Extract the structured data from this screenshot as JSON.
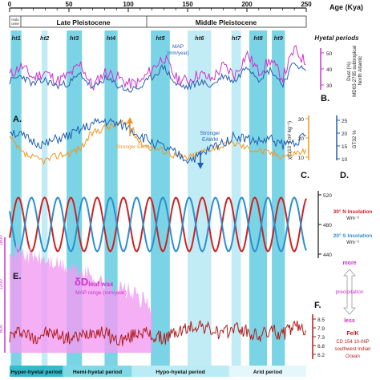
{
  "axis": {
    "label": "Age (Kya)",
    "ticks": [
      "0",
      "50",
      "100",
      "150",
      "200",
      "250"
    ],
    "range": [
      0,
      250
    ]
  },
  "periods": {
    "holocene": "Holo cene",
    "late": "Late Pleistocene",
    "middle": "Middle Pleistocene"
  },
  "hyetal": {
    "title": "Hyetal periods",
    "labels": [
      "ht1",
      "ht2",
      "ht3",
      "ht4",
      "ht5",
      "ht6",
      "ht7",
      "ht8",
      "ht9"
    ],
    "bands": [
      [
        1,
        10
      ],
      [
        27,
        32
      ],
      [
        48,
        61
      ],
      [
        80,
        91
      ],
      [
        119,
        135
      ],
      [
        150,
        170
      ],
      [
        187,
        195
      ],
      [
        202,
        217
      ],
      [
        221,
        232
      ]
    ]
  },
  "panel_labels": {
    "A": "A.",
    "B": "B.",
    "C": "C.",
    "D": "D.",
    "E": "E.",
    "F": "F."
  },
  "panelB": {
    "axis_title": "Dust (%)\nMD03-2705 subtropical\nNorth Atlantic",
    "ticks": [
      "30",
      "40",
      "50"
    ],
    "map_label": "MAP\n(mm/year)",
    "color_dust": "#cc33cc",
    "color_map": "#2a5db0"
  },
  "panelC": {
    "axis_title": "χlf (10⁻⁸ m³ kg⁻¹)",
    "ticks": [
      "10",
      "20",
      "30"
    ],
    "easm": "Stronger EASM",
    "eawm": "Stronger\nEAWM",
    "color": "#f0961e"
  },
  "panelD": {
    "axis_title": "GT32 %",
    "ticks": [
      "10",
      "15",
      "20",
      "25"
    ],
    "color": "#1f5fb0"
  },
  "insolation": {
    "ticks": [
      "520",
      "480",
      "440"
    ],
    "n_label": "30° N Insolation",
    "s_label": "20° S Insolation",
    "unit": "Wm⁻²",
    "color_n": "#cc2222",
    "color_s": "#2a8fcf"
  },
  "panelE": {
    "delta": "δD",
    "subscript": "leaf wax",
    "map_range": "MAP range (mm/year)",
    "left_ticks": [
      "1800",
      "1200",
      "600"
    ],
    "color": "#e060e0"
  },
  "precip": {
    "more": "more",
    "label": "precipitation",
    "less": "less"
  },
  "panelF": {
    "ticks": [
      "8.5",
      "7.9",
      "7.3",
      "6.8",
      "6.2"
    ],
    "axis_title": "Fe/K",
    "core": "CD 154 10-06P",
    "region": "southwest Indian\nOcean",
    "color": "#b01c1c"
  },
  "bottom_periods": {
    "labels": [
      "Hyper-hyetal period",
      "Hemi-hyetal period",
      "Hypo-hyetal period",
      "Arid period"
    ],
    "spans": [
      [
        0,
        45
      ],
      [
        45,
        103
      ],
      [
        103,
        185
      ],
      [
        185,
        250
      ]
    ],
    "colors": [
      "#33bbcc",
      "#7fd8e6",
      "#b9ecf4",
      "#e4f7fb"
    ]
  },
  "chart_data": [
    {
      "type": "line",
      "series": [
        {
          "name": "Dust (%)",
          "x": [
            0,
            10,
            20,
            30,
            40,
            50,
            60,
            70,
            80,
            90,
            100,
            110,
            120,
            130,
            140,
            150,
            160,
            170,
            180,
            190,
            200,
            210,
            220,
            230,
            240,
            250
          ],
          "values": [
            38,
            44,
            36,
            40,
            34,
            38,
            45,
            30,
            40,
            37,
            32,
            33,
            42,
            50,
            36,
            34,
            39,
            35,
            44,
            38,
            52,
            40,
            48,
            36,
            55,
            46
          ]
        },
        {
          "name": "MAP",
          "x": [
            0,
            10,
            20,
            30,
            40,
            50,
            60,
            70,
            80,
            90,
            100,
            110,
            120,
            130,
            140,
            150,
            160,
            170,
            180,
            190,
            200,
            210,
            220,
            230,
            240,
            250
          ],
          "values": [
            36,
            40,
            34,
            37,
            33,
            35,
            41,
            31,
            38,
            34,
            30,
            32,
            39,
            46,
            34,
            32,
            36,
            33,
            40,
            36,
            47,
            38,
            44,
            34,
            49,
            42
          ]
        }
      ],
      "xlim": [
        0,
        250
      ]
    },
    {
      "type": "line",
      "series": [
        {
          "name": "χlf",
          "x": [
            0,
            10,
            20,
            30,
            40,
            50,
            60,
            70,
            80,
            90,
            100,
            110,
            120,
            130,
            140,
            150,
            160,
            170,
            180,
            190,
            200,
            210,
            220,
            230,
            240,
            250
          ],
          "values": [
            20,
            14,
            12,
            11,
            13,
            14,
            16,
            22,
            24,
            25,
            26,
            18,
            16,
            15,
            13,
            12,
            14,
            16,
            17,
            18,
            16,
            15,
            14,
            13,
            14,
            15
          ]
        },
        {
          "name": "GT32 %",
          "x": [
            0,
            10,
            20,
            30,
            40,
            50,
            60,
            70,
            80,
            90,
            100,
            110,
            120,
            130,
            140,
            150,
            160,
            170,
            180,
            190,
            200,
            210,
            220,
            230,
            240,
            250
          ],
          "values": [
            22,
            20,
            18,
            17,
            19,
            20,
            22,
            24,
            25,
            24,
            23,
            20,
            18,
            16,
            14,
            12,
            13,
            16,
            18,
            20,
            19,
            18,
            19,
            17,
            18,
            20
          ]
        }
      ],
      "xlim": [
        0,
        250
      ]
    },
    {
      "type": "line",
      "series": [
        {
          "name": "30° N Insolation",
          "x": [
            0,
            11,
            22,
            33,
            44,
            55,
            66,
            77,
            88,
            99,
            110,
            121,
            132,
            143,
            154,
            165,
            176,
            187,
            198,
            209,
            220,
            231,
            242,
            250
          ],
          "values": [
            500,
            460,
            500,
            455,
            505,
            450,
            510,
            445,
            515,
            450,
            510,
            450,
            505,
            455,
            500,
            460,
            505,
            455,
            500,
            460,
            495,
            465,
            495,
            480
          ]
        },
        {
          "name": "20° S Insolation",
          "x": [
            0,
            11,
            22,
            33,
            44,
            55,
            66,
            77,
            88,
            99,
            110,
            121,
            132,
            143,
            154,
            165,
            176,
            187,
            198,
            209,
            220,
            231,
            242,
            250
          ],
          "values": [
            460,
            500,
            460,
            505,
            455,
            510,
            450,
            515,
            445,
            510,
            450,
            510,
            455,
            505,
            460,
            500,
            455,
            505,
            460,
            500,
            465,
            495,
            465,
            480
          ]
        }
      ],
      "xlim": [
        0,
        250
      ]
    },
    {
      "type": "area",
      "series": [
        {
          "name": "δD leaf wax MAP range",
          "x": [
            0,
            10,
            20,
            30,
            40,
            50,
            60,
            70,
            80,
            90,
            100,
            110,
            120
          ],
          "values": [
            1800,
            1700,
            1650,
            1600,
            1550,
            1500,
            1450,
            1400,
            1300,
            1250,
            1200,
            1100,
            1000
          ]
        }
      ],
      "xlim": [
        0,
        250
      ]
    },
    {
      "type": "line",
      "series": [
        {
          "name": "Fe/K",
          "x": [
            0,
            10,
            20,
            30,
            40,
            50,
            60,
            70,
            80,
            90,
            100,
            110,
            120,
            130,
            140,
            150,
            160,
            170,
            180,
            190,
            200,
            210,
            220,
            230,
            240,
            250
          ],
          "values": [
            7.3,
            7.6,
            7.2,
            7.5,
            7.4,
            7.2,
            7.3,
            7.6,
            7.5,
            7.1,
            7.2,
            7.6,
            7.3,
            7.2,
            7.5,
            7.7,
            7.9,
            7.6,
            7.4,
            7.8,
            7.5,
            7.3,
            7.6,
            7.4,
            7.8,
            7.6
          ]
        }
      ],
      "xlim": [
        0,
        250
      ]
    }
  ]
}
